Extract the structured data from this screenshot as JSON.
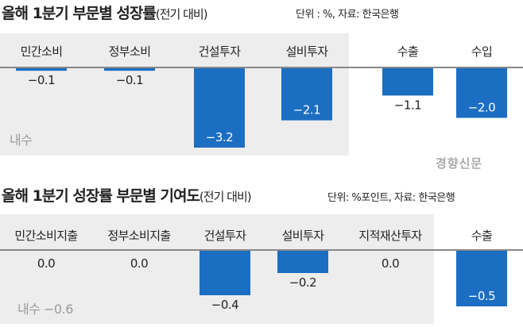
{
  "chart_data": [
    {
      "type": "bar",
      "title": "올해 1분기 부문별 성장률",
      "subtitle": "(전기 대비)",
      "source": "단위 : %, 자료: 한국은행",
      "group_label": "내수",
      "categories": [
        "민간소비",
        "정부소비",
        "건설투자",
        "설비투자",
        "수출",
        "수입"
      ],
      "values": [
        -0.1,
        -0.1,
        -3.2,
        -2.1,
        -1.1,
        -2.0
      ],
      "value_labels": [
        "−0.1",
        "−0.1",
        "−3.2",
        "−2.1",
        "−1.1",
        "−2.0"
      ],
      "ylim": [
        -3.2,
        0
      ],
      "bar_color": "#1b6ec2",
      "panel_color": "#ededed"
    },
    {
      "type": "bar",
      "title": "올해 1분기 성장률 부문별 기여도",
      "subtitle": "(전기 대비)",
      "source": "단위: %포인트, 자료: 한국은행",
      "group_label": "내수 −0.6",
      "categories": [
        "민간소비지출",
        "정부소비지출",
        "건설투자",
        "설비투자",
        "지적재산투자",
        "수출"
      ],
      "values": [
        0.0,
        0.0,
        -0.4,
        -0.2,
        0.0,
        -0.5
      ],
      "value_labels": [
        "0.0",
        "0.0",
        "−0.4",
        "−0.2",
        "0.0",
        "−0.5"
      ],
      "ylim": [
        -0.5,
        0
      ],
      "bar_color": "#1b6ec2",
      "panel_color": "#ededed"
    }
  ],
  "watermark": "경향신문"
}
